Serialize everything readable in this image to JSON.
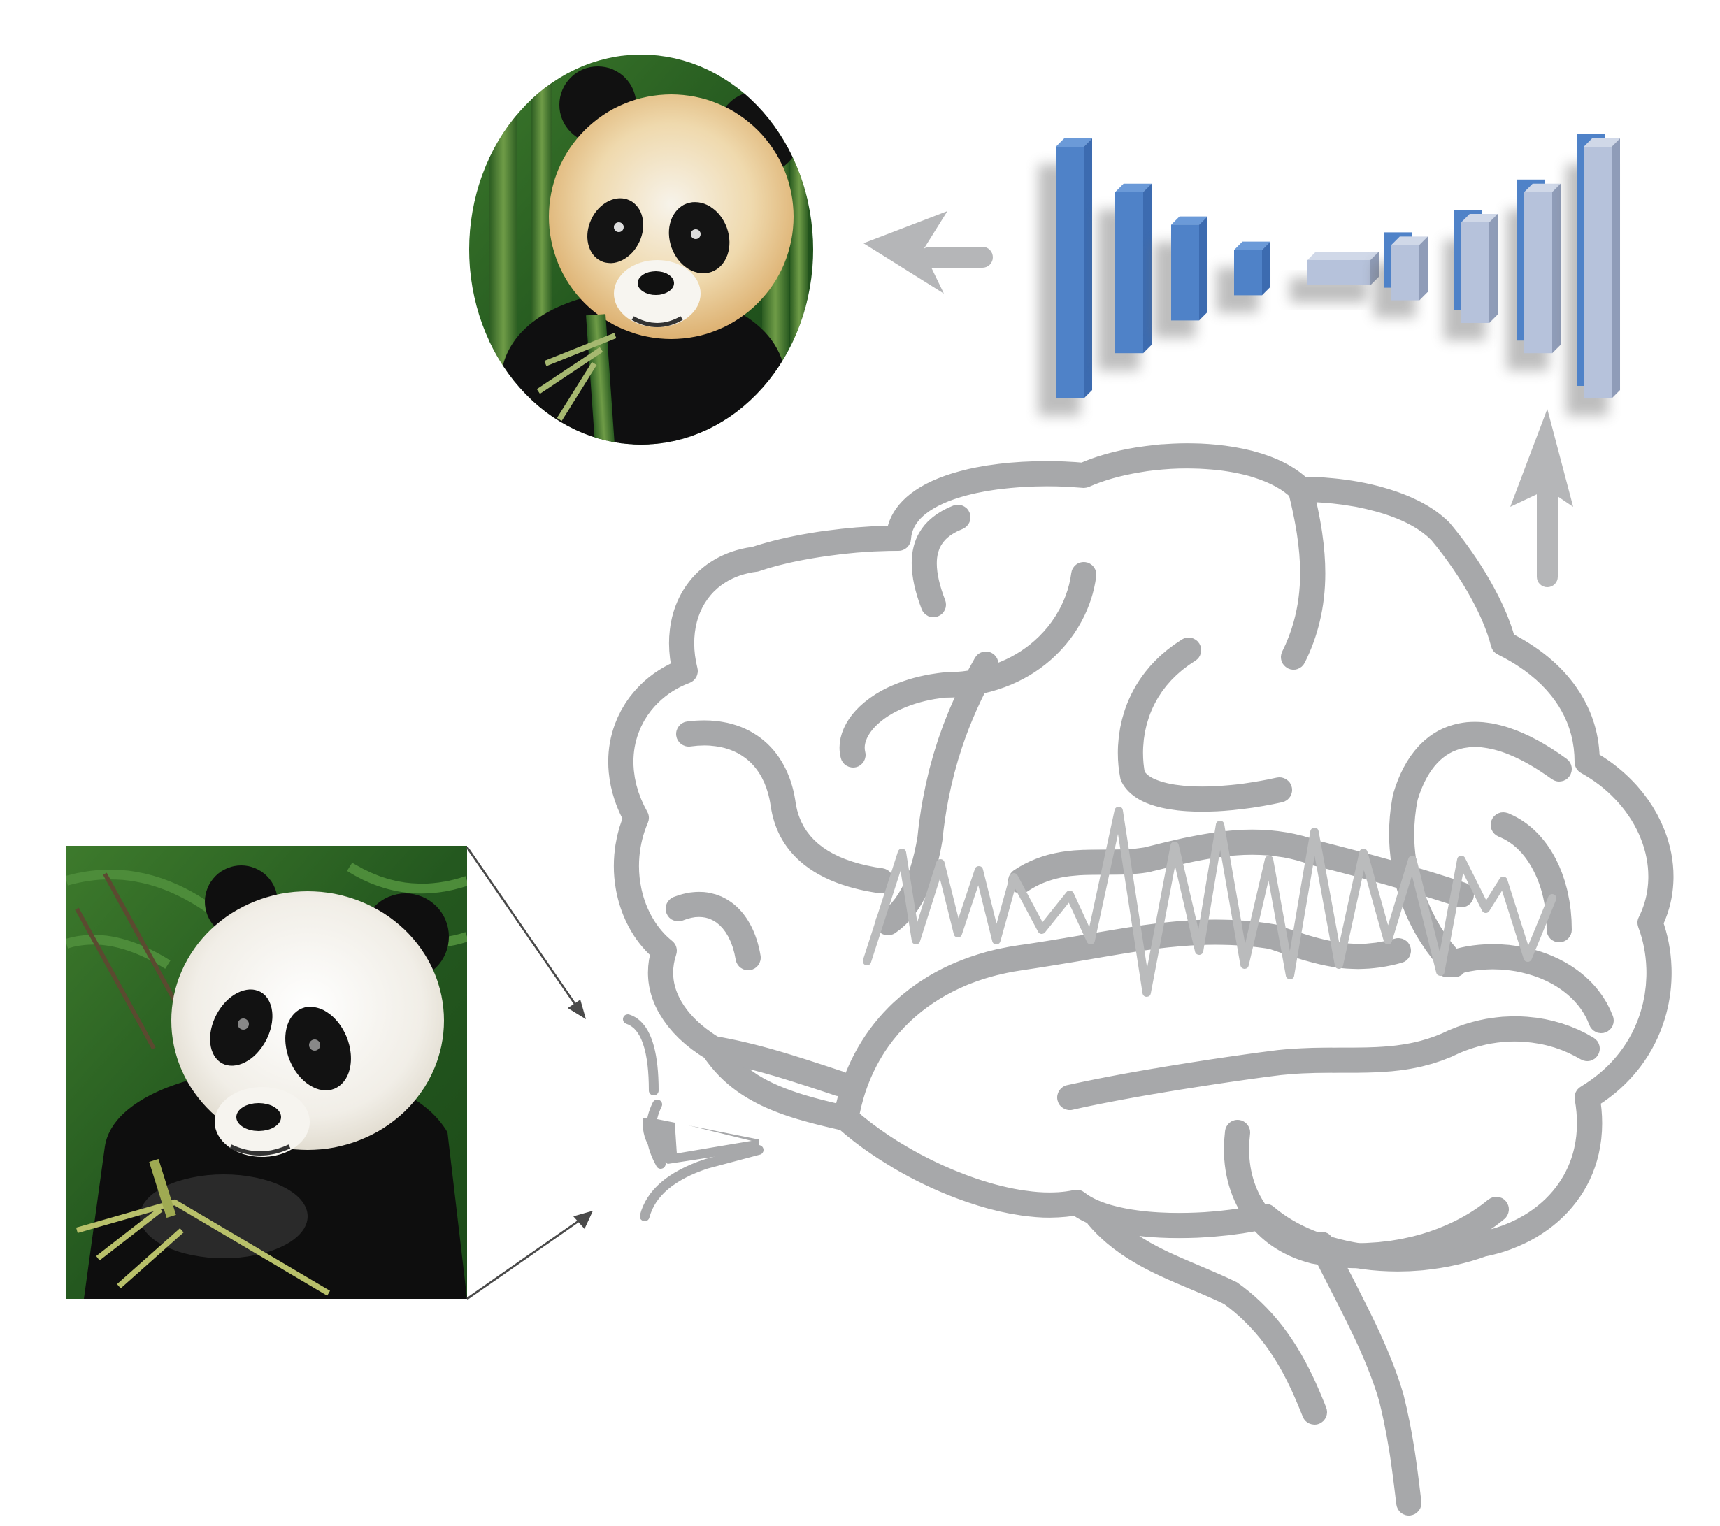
{
  "colors": {
    "brain_stroke": "#a7a8aa",
    "signal_wave": "#babbbc",
    "flow_arrow": "#b5b6b8",
    "stimulus_arrow": "#4a4a4a",
    "encoder_bar_dark": "#4f82c8",
    "encoder_bar_light": "#b6c2db",
    "panda_foliage": "#2f6b2a",
    "panda_bamboo": "#5a8c3a",
    "panda_fur_white": "#f4f2ee",
    "panda_fur_tan": "#e8c48a",
    "panda_black": "#0f0f10"
  },
  "icons": {
    "stimulus": "panda-photo",
    "reconstruction": "panda-reconstruction",
    "viewer": "eye-icon",
    "brain": "brain-icon",
    "signal": "neural-signal-wave",
    "model": "encoder-decoder-network"
  },
  "network": {
    "bars": [
      {
        "level": 1.0,
        "tone": "dark"
      },
      {
        "level": 0.64,
        "tone": "dark"
      },
      {
        "level": 0.38,
        "tone": "dark"
      },
      {
        "level": 0.18,
        "tone": "dark"
      },
      {
        "level": 0.1,
        "tone": "light"
      },
      {
        "level": 0.22,
        "tone": "light"
      },
      {
        "level": 0.4,
        "tone": "light"
      },
      {
        "level": 0.64,
        "tone": "light"
      },
      {
        "level": 1.0,
        "tone": "light"
      }
    ]
  }
}
